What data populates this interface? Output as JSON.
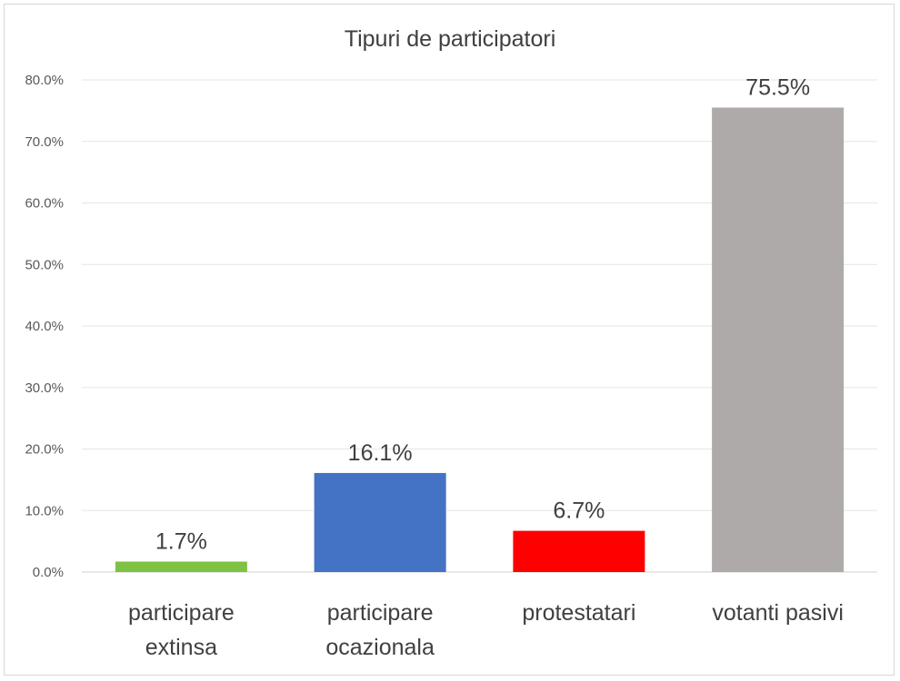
{
  "chart_data": {
    "type": "bar",
    "title": "Tipuri de participatori",
    "categories": [
      [
        "participare",
        "extinsa"
      ],
      [
        "participare",
        "ocazionala"
      ],
      [
        "protestatari"
      ],
      [
        "votanti pasivi"
      ]
    ],
    "values": [
      1.7,
      16.1,
      6.7,
      75.5
    ],
    "data_labels": [
      "1.7%",
      "16.1%",
      "6.7%",
      "75.5%"
    ],
    "colors": [
      "#7dc242",
      "#4472c4",
      "#ff0000",
      "#aeaaaa"
    ],
    "ylim": [
      0,
      80
    ],
    "yticks": [
      0,
      10,
      20,
      30,
      40,
      50,
      60,
      70,
      80
    ],
    "ytick_labels": [
      "0.0%",
      "10.0%",
      "20.0%",
      "30.0%",
      "40.0%",
      "50.0%",
      "60.0%",
      "70.0%",
      "80.0%"
    ],
    "grid": true,
    "legend": "none",
    "xlabel": "",
    "ylabel": ""
  }
}
